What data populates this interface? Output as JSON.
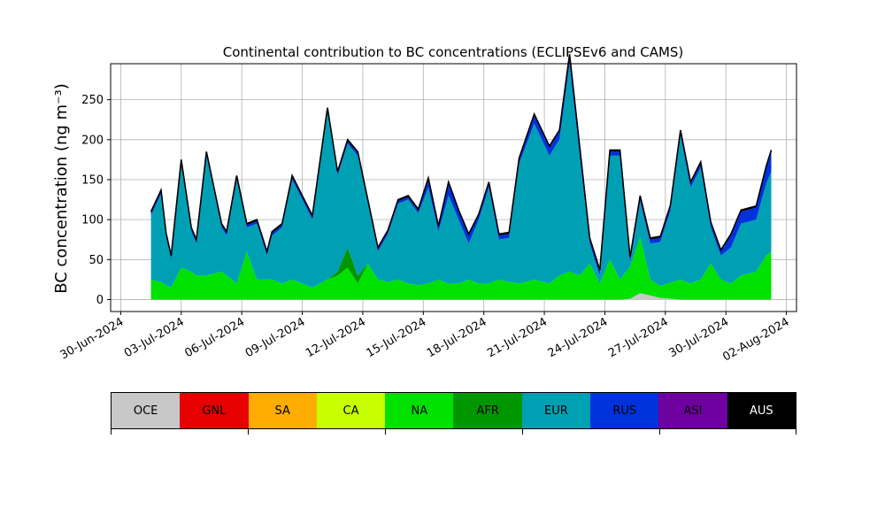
{
  "chart_data": {
    "type": "area",
    "stacked": true,
    "title": "Continental contribution to BC concentrations (ECLIPSEv6 and CAMS)",
    "ylabel": "BC concentration (ng m⁻³)",
    "xlabel": "",
    "xlim": [
      "2024-06-29T12:00",
      "2024-08-02T12:00"
    ],
    "ylim": [
      -15,
      295
    ],
    "yticks": [
      0,
      50,
      100,
      150,
      200,
      250
    ],
    "xticks": [
      "2024-06-30",
      "2024-07-03",
      "2024-07-06",
      "2024-07-09",
      "2024-07-12",
      "2024-07-15",
      "2024-07-18",
      "2024-07-21",
      "2024-07-24",
      "2024-07-27",
      "2024-07-30",
      "2024-08-02"
    ],
    "xtick_labels": [
      "30-Jun-2024",
      "03-Jul-2024",
      "06-Jul-2024",
      "09-Jul-2024",
      "12-Jul-2024",
      "15-Jul-2024",
      "18-Jul-2024",
      "21-Jul-2024",
      "24-Jul-2024",
      "27-Jul-2024",
      "30-Jul-2024",
      "02-Aug-2024"
    ],
    "grid": true,
    "x": [
      "2024-07-01T12:00",
      "2024-07-02T00:00",
      "2024-07-02T06:00",
      "2024-07-02T12:00",
      "2024-07-03T00:00",
      "2024-07-03T12:00",
      "2024-07-03T18:00",
      "2024-07-04T06:00",
      "2024-07-05T00:00",
      "2024-07-05T06:00",
      "2024-07-05T18:00",
      "2024-07-06T06:00",
      "2024-07-06T18:00",
      "2024-07-07T06:00",
      "2024-07-07T12:00",
      "2024-07-08T00:00",
      "2024-07-08T12:00",
      "2024-07-09T12:00",
      "2024-07-10T06:00",
      "2024-07-10T18:00",
      "2024-07-11T06:00",
      "2024-07-11T18:00",
      "2024-07-12T06:00",
      "2024-07-12T18:00",
      "2024-07-13T06:00",
      "2024-07-13T18:00",
      "2024-07-14T06:00",
      "2024-07-14T18:00",
      "2024-07-15T06:00",
      "2024-07-15T18:00",
      "2024-07-16T06:00",
      "2024-07-16T18:00",
      "2024-07-17T06:00",
      "2024-07-17T18:00",
      "2024-07-18T06:00",
      "2024-07-18T18:00",
      "2024-07-19T06:00",
      "2024-07-19T18:00",
      "2024-07-20T12:00",
      "2024-07-21T06:00",
      "2024-07-21T18:00",
      "2024-07-22T06:00",
      "2024-07-22T18:00",
      "2024-07-23T06:00",
      "2024-07-23T18:00",
      "2024-07-24T06:00",
      "2024-07-24T18:00",
      "2024-07-25T06:00",
      "2024-07-25T18:00",
      "2024-07-26T06:00",
      "2024-07-26T18:00",
      "2024-07-27T06:00",
      "2024-07-27T18:00",
      "2024-07-28T06:00",
      "2024-07-28T18:00",
      "2024-07-29T06:00",
      "2024-07-29T18:00",
      "2024-07-30T06:00",
      "2024-07-30T18:00",
      "2024-07-31T12:00",
      "2024-08-01T00:00",
      "2024-08-01T06:00"
    ],
    "series": [
      {
        "name": "OCE",
        "color": "#c8c8c8",
        "values": [
          0,
          0,
          0,
          0,
          0,
          0,
          0,
          0,
          0,
          0,
          0,
          0,
          0,
          0,
          0,
          0,
          0,
          0,
          0,
          0,
          0,
          0,
          0,
          0,
          0,
          0,
          0,
          0,
          0,
          0,
          0,
          0,
          0,
          0,
          0,
          0,
          0,
          0,
          0,
          0,
          0,
          0,
          0,
          0,
          0,
          0,
          0,
          1,
          8,
          5,
          2,
          1,
          0,
          0,
          0,
          0,
          0,
          0,
          0,
          0,
          0,
          0
        ]
      },
      {
        "name": "GNL",
        "color": "#e60000",
        "values": [
          0,
          0,
          0,
          0,
          0,
          0,
          0,
          0,
          0,
          0,
          0,
          0,
          0,
          0,
          0,
          0,
          0,
          0,
          0,
          0,
          0,
          0,
          0,
          0,
          0,
          0,
          0,
          0,
          0,
          0,
          0,
          0,
          0,
          0,
          0,
          0,
          0,
          0,
          0,
          0,
          0,
          0,
          0,
          0,
          0,
          0,
          0,
          0,
          0,
          0,
          0,
          0,
          0,
          0,
          0,
          0,
          0,
          0,
          0,
          0,
          0,
          0
        ]
      },
      {
        "name": "SA",
        "color": "#ffad00",
        "values": [
          0,
          0,
          0,
          0,
          0,
          0,
          0,
          0,
          0,
          0,
          0,
          0,
          0,
          0,
          0,
          0,
          0,
          0,
          0,
          0,
          0,
          0,
          0,
          0,
          0,
          0,
          0,
          0,
          0,
          0,
          0,
          0,
          0,
          0,
          0,
          0,
          0,
          0,
          0,
          0,
          0,
          0,
          0,
          0,
          0,
          0,
          0,
          0,
          0,
          0,
          0,
          0,
          0,
          0,
          0,
          0,
          0,
          0,
          0,
          0,
          0,
          0
        ]
      },
      {
        "name": "CA",
        "color": "#c8ff00",
        "values": [
          0,
          0,
          0,
          0,
          0,
          0,
          0,
          0,
          0,
          0,
          0,
          0,
          0,
          0,
          0,
          0,
          0,
          0,
          0,
          0,
          0,
          0,
          0,
          0,
          0,
          0,
          0,
          0,
          0,
          0,
          0,
          0,
          0,
          0,
          0,
          0,
          0,
          0,
          0,
          0,
          0,
          0,
          0,
          0,
          0,
          0,
          0,
          0,
          0,
          0,
          0,
          0,
          0,
          0,
          0,
          0,
          0,
          0,
          0,
          0,
          0,
          0
        ]
      },
      {
        "name": "NA",
        "color": "#00e100",
        "values": [
          25,
          22,
          18,
          15,
          40,
          35,
          30,
          30,
          35,
          30,
          20,
          60,
          25,
          25,
          25,
          20,
          25,
          15,
          25,
          30,
          40,
          20,
          45,
          25,
          22,
          25,
          20,
          18,
          20,
          25,
          20,
          20,
          25,
          20,
          20,
          25,
          22,
          20,
          25,
          20,
          30,
          35,
          30,
          45,
          20,
          50,
          25,
          40,
          70,
          20,
          15,
          20,
          25,
          20,
          25,
          45,
          25,
          20,
          30,
          35,
          55,
          60
        ]
      },
      {
        "name": "AFR",
        "color": "#009600",
        "values": [
          0,
          0,
          0,
          0,
          0,
          0,
          0,
          0,
          0,
          0,
          0,
          0,
          0,
          0,
          0,
          0,
          0,
          0,
          0,
          5,
          25,
          10,
          0,
          0,
          0,
          0,
          0,
          0,
          0,
          0,
          0,
          0,
          0,
          0,
          0,
          0,
          0,
          0,
          0,
          0,
          0,
          0,
          0,
          0,
          0,
          0,
          0,
          0,
          0,
          0,
          0,
          0,
          0,
          0,
          0,
          0,
          0,
          0,
          0,
          0,
          0,
          0
        ]
      },
      {
        "name": "EUR",
        "color": "#00a0b4",
        "values": [
          80,
          110,
          60,
          35,
          130,
          50,
          40,
          150,
          55,
          50,
          130,
          30,
          70,
          30,
          55,
          70,
          125,
          85,
          210,
          120,
          130,
          150,
          75,
          35,
          60,
          95,
          105,
          90,
          120,
          60,
          110,
          80,
          45,
          80,
          120,
          50,
          55,
          150,
          195,
          160,
          170,
          260,
          150,
          25,
          10,
          130,
          155,
          5,
          45,
          45,
          55,
          90,
          180,
          120,
          140,
          45,
          30,
          45,
          65,
          65,
          90,
          100
        ]
      },
      {
        "name": "RUS",
        "color": "#0032dc",
        "values": [
          3,
          3,
          3,
          3,
          3,
          3,
          3,
          3,
          3,
          3,
          3,
          3,
          3,
          3,
          3,
          3,
          3,
          3,
          3,
          3,
          3,
          3,
          3,
          3,
          3,
          3,
          3,
          3,
          10,
          5,
          15,
          10,
          10,
          5,
          5,
          5,
          5,
          5,
          10,
          10,
          10,
          10,
          10,
          5,
          5,
          5,
          5,
          5,
          5,
          5,
          5,
          5,
          5,
          5,
          5,
          5,
          5,
          15,
          15,
          15,
          20,
          25
        ]
      },
      {
        "name": "ASI",
        "color": "#6e00a0",
        "values": [
          0,
          0,
          0,
          0,
          0,
          0,
          0,
          0,
          0,
          0,
          0,
          0,
          0,
          0,
          0,
          0,
          0,
          0,
          0,
          0,
          0,
          0,
          0,
          0,
          0,
          0,
          0,
          0,
          0,
          0,
          0,
          0,
          0,
          0,
          0,
          0,
          0,
          0,
          0,
          0,
          0,
          0,
          0,
          0,
          0,
          0,
          0,
          0,
          0,
          0,
          0,
          0,
          0,
          0,
          0,
          0,
          0,
          0,
          0,
          0,
          0,
          0
        ]
      },
      {
        "name": "AUS",
        "color": "#000000",
        "values": [
          2,
          2,
          2,
          2,
          2,
          2,
          2,
          2,
          2,
          2,
          2,
          2,
          2,
          2,
          2,
          2,
          2,
          2,
          2,
          2,
          2,
          2,
          2,
          2,
          2,
          2,
          2,
          2,
          2,
          2,
          2,
          2,
          2,
          2,
          2,
          2,
          2,
          2,
          2,
          2,
          2,
          2,
          2,
          2,
          2,
          2,
          2,
          2,
          2,
          2,
          2,
          2,
          2,
          2,
          2,
          2,
          2,
          2,
          2,
          2,
          2,
          2
        ]
      }
    ],
    "legend": {
      "placement": "bottom",
      "entries": [
        "OCE",
        "GNL",
        "SA",
        "CA",
        "NA",
        "AFR",
        "EUR",
        "RUS",
        "ASI",
        "AUS"
      ],
      "text_colors": [
        "#000000",
        "#000000",
        "#000000",
        "#000000",
        "#000000",
        "#000000",
        "#000000",
        "#000000",
        "#000000",
        "#ffffff"
      ]
    }
  }
}
